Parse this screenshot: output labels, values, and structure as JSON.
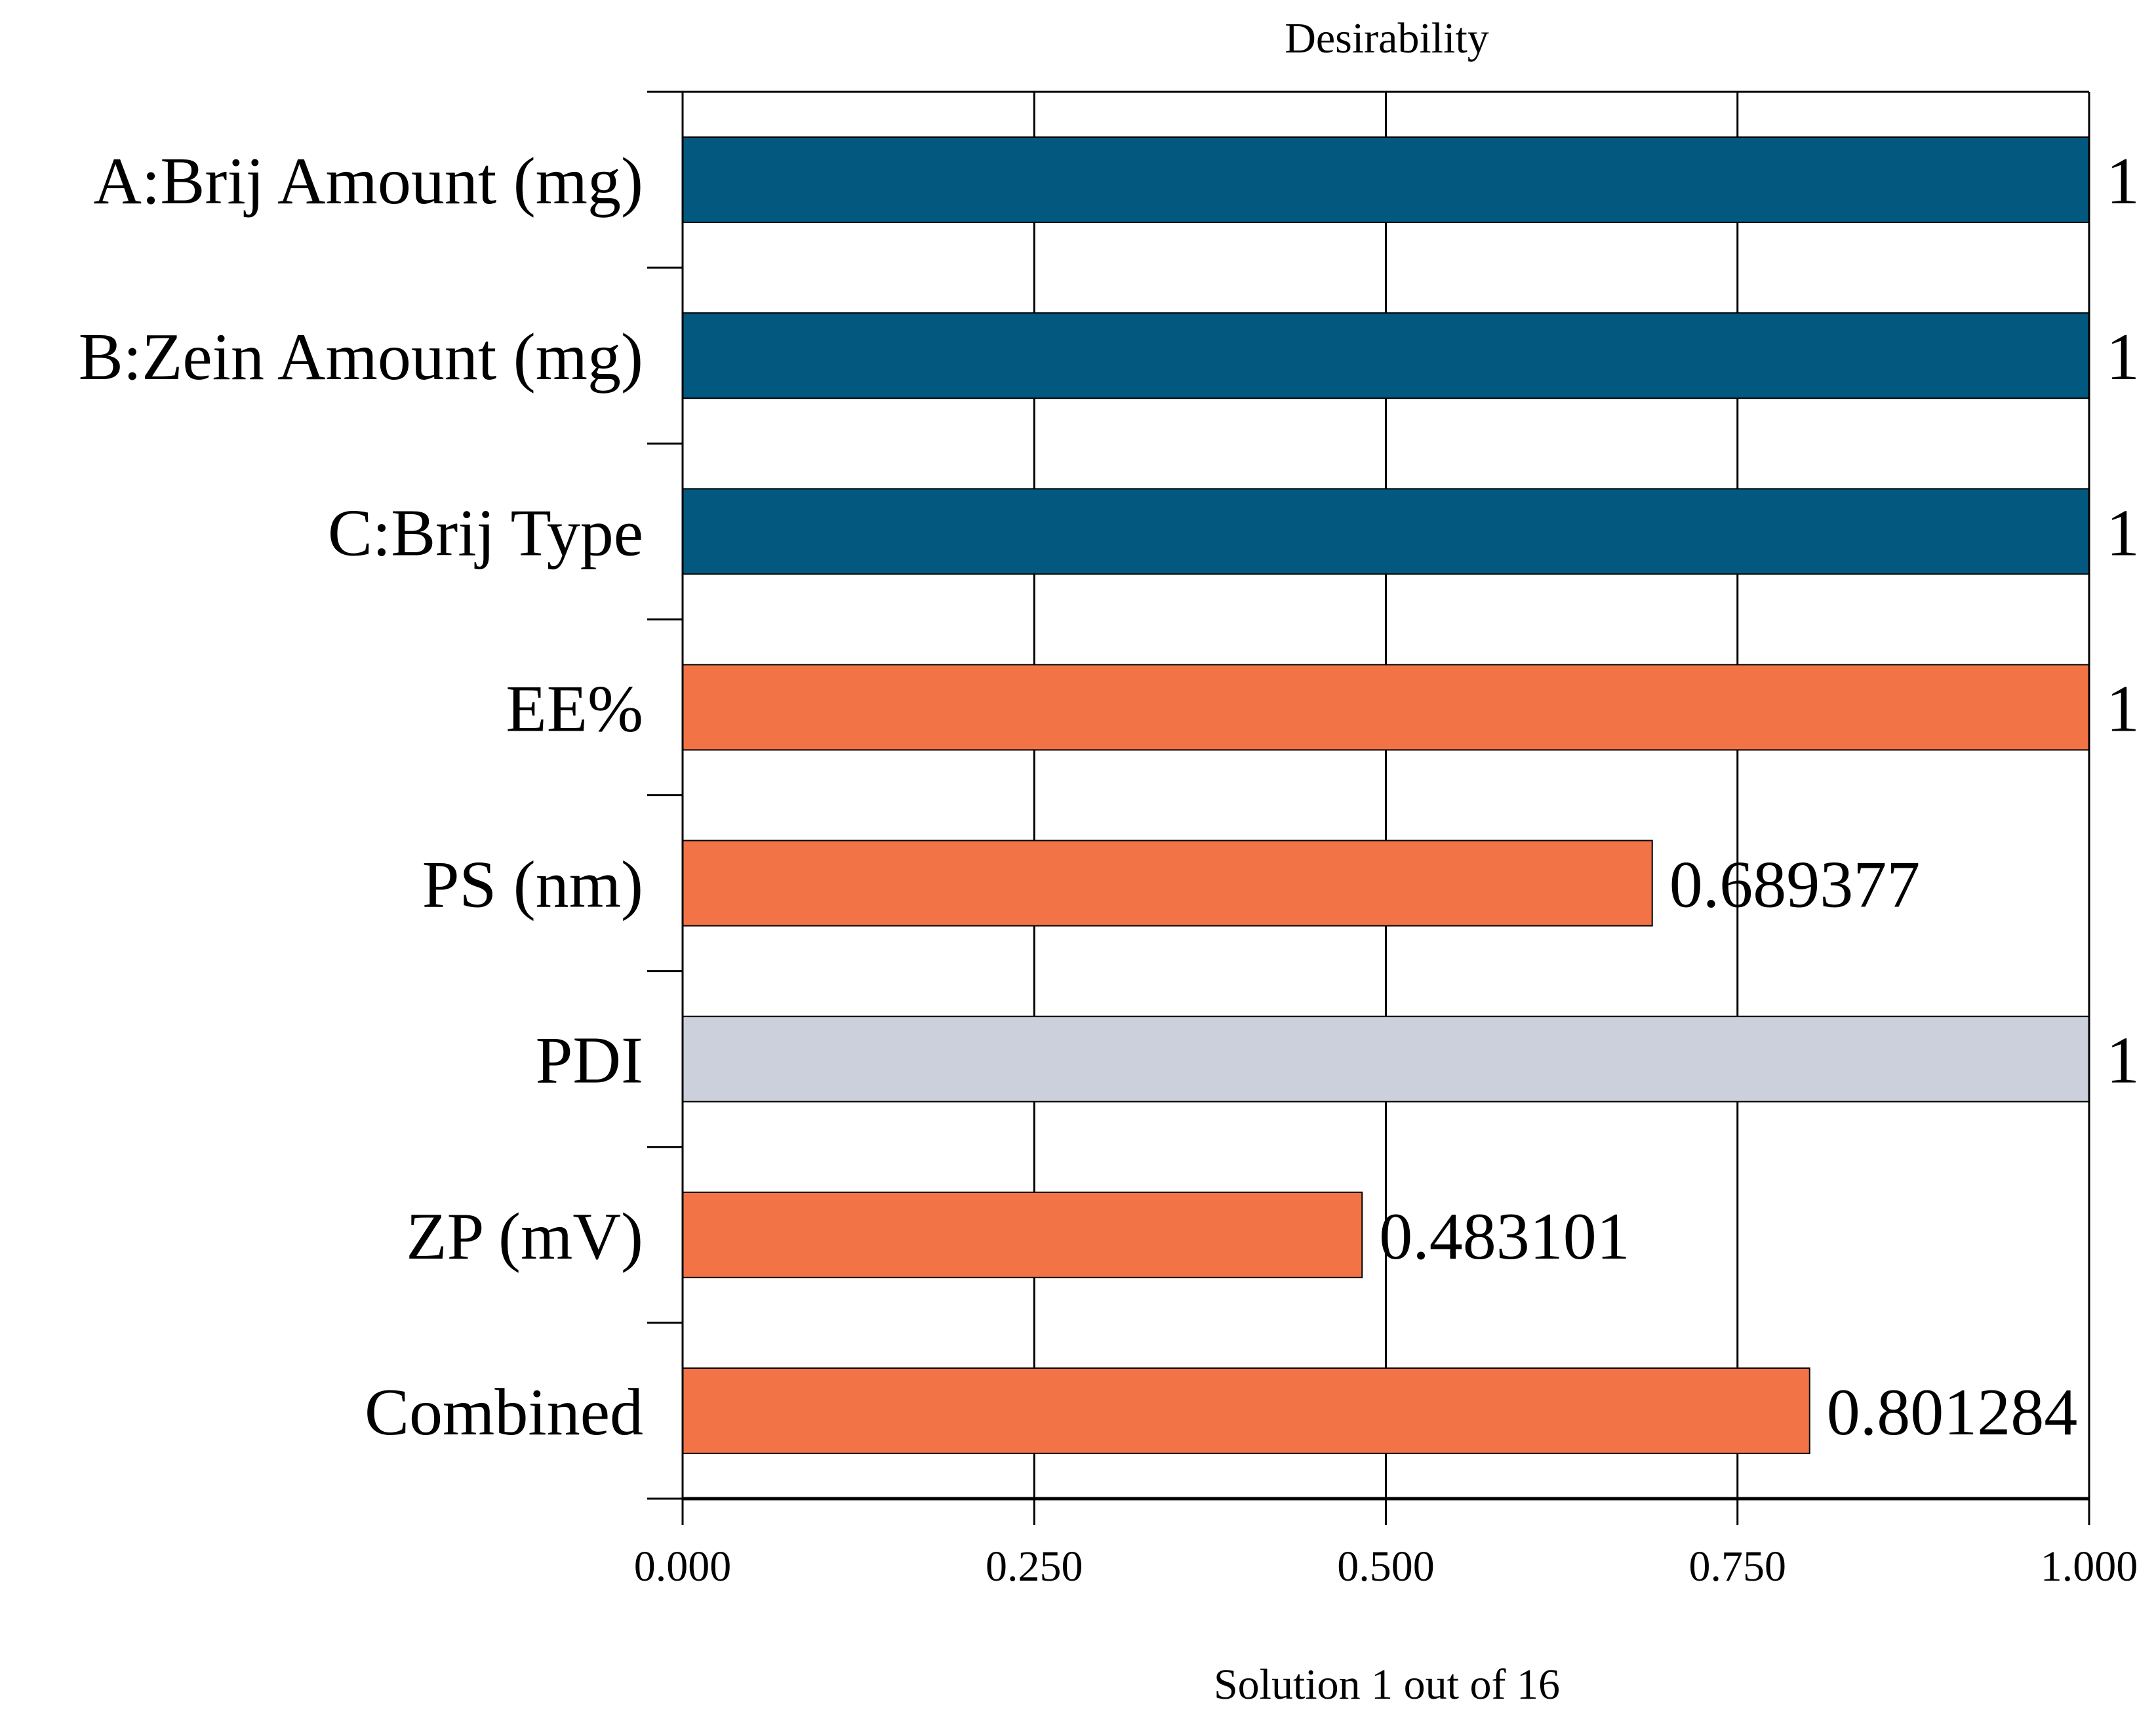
{
  "chart_data": {
    "type": "bar",
    "orientation": "horizontal",
    "title": "Desirability",
    "xlabel": "Solution 1 out of 16",
    "ylabel": "",
    "xlim": [
      0,
      1
    ],
    "x_ticks": [
      0,
      0.25,
      0.5,
      0.75,
      1
    ],
    "x_tick_labels": [
      "0.000",
      "0.250",
      "0.500",
      "0.750",
      "1.000"
    ],
    "grid": true,
    "categories": [
      "A:Brij Amount (mg)",
      "B:Zein Amount (mg)",
      "C:Brij Type",
      "EE%",
      "PS (nm)",
      "PDI",
      "ZP (mV)",
      "Combined"
    ],
    "values": [
      1,
      1,
      1,
      1,
      0.689377,
      1,
      0.483101,
      0.801284
    ],
    "value_labels": [
      "1",
      "1",
      "1",
      "1",
      "0.689377",
      "1",
      "0.483101",
      "0.801284"
    ],
    "bar_colors": [
      "#03587f",
      "#03587f",
      "#03587f",
      "#f27346",
      "#f27346",
      "#cbd0dc",
      "#f27346",
      "#f27346"
    ]
  }
}
